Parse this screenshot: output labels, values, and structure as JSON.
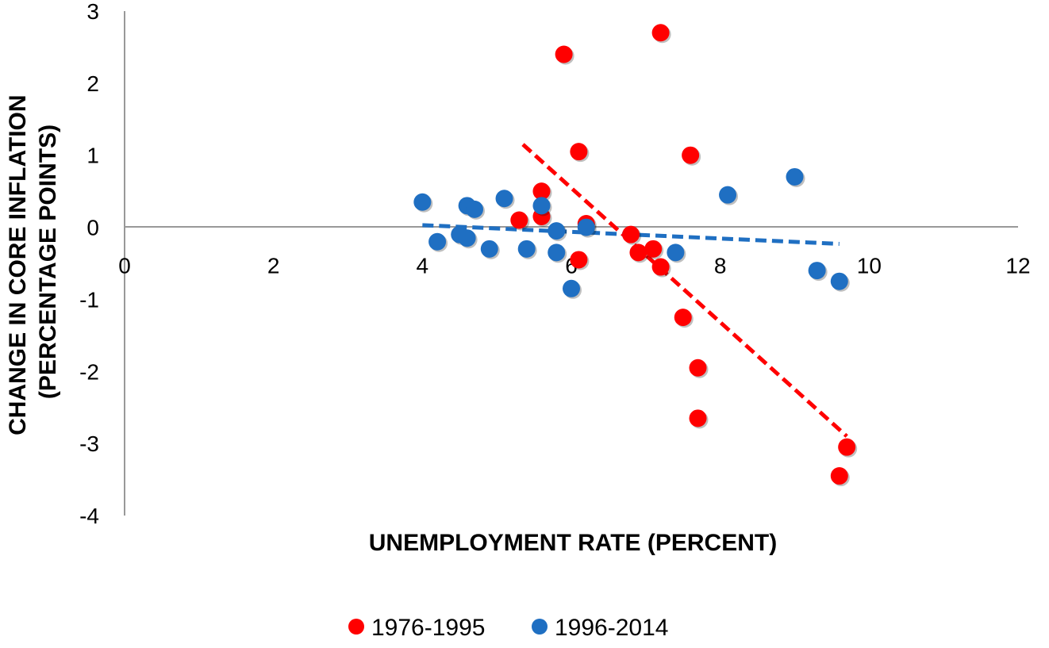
{
  "chart_data": {
    "type": "scatter",
    "title": "",
    "xlabel": "UNEMPLOYMENT RATE (PERCENT)",
    "ylabel_lines": [
      "CHANGE IN CORE INFLATION",
      "(PERCENTAGE POINTS)"
    ],
    "xlim": [
      0,
      12
    ],
    "ylim": [
      -4,
      3
    ],
    "xticks": [
      0,
      2,
      4,
      6,
      8,
      10,
      12
    ],
    "yticks": [
      3,
      2,
      1,
      0,
      -1,
      -2,
      -3,
      -4
    ],
    "grid": false,
    "legend_position": "bottom",
    "series": [
      {
        "name": "1976-1995",
        "color": "#ff0000",
        "points": [
          [
            5.9,
            2.4
          ],
          [
            7.2,
            2.7
          ],
          [
            6.1,
            1.05
          ],
          [
            7.6,
            1.0
          ],
          [
            5.6,
            0.5
          ],
          [
            5.3,
            0.1
          ],
          [
            5.6,
            0.15
          ],
          [
            6.2,
            0.05
          ],
          [
            6.8,
            -0.1
          ],
          [
            6.9,
            -0.35
          ],
          [
            7.1,
            -0.3
          ],
          [
            7.2,
            -0.55
          ],
          [
            6.1,
            -0.45
          ],
          [
            7.5,
            -1.25
          ],
          [
            7.7,
            -1.95
          ],
          [
            7.7,
            -2.65
          ],
          [
            9.7,
            -3.05
          ],
          [
            9.6,
            -3.45
          ]
        ],
        "trendline": {
          "x": [
            5.35,
            9.7
          ],
          "y": [
            1.15,
            -2.9
          ]
        }
      },
      {
        "name": "1996-2014",
        "color": "#1f6fc2",
        "points": [
          [
            4.0,
            0.35
          ],
          [
            4.2,
            -0.2
          ],
          [
            4.5,
            -0.1
          ],
          [
            4.6,
            -0.15
          ],
          [
            4.6,
            0.3
          ],
          [
            4.7,
            0.25
          ],
          [
            4.9,
            -0.3
          ],
          [
            5.1,
            0.4
          ],
          [
            5.4,
            -0.3
          ],
          [
            5.6,
            0.3
          ],
          [
            5.8,
            -0.05
          ],
          [
            5.8,
            -0.35
          ],
          [
            6.0,
            -0.85
          ],
          [
            6.2,
            0.0
          ],
          [
            7.4,
            -0.35
          ],
          [
            8.1,
            0.45
          ],
          [
            9.0,
            0.7
          ],
          [
            9.3,
            -0.6
          ],
          [
            9.6,
            -0.75
          ]
        ],
        "trendline": {
          "x": [
            4.0,
            9.6
          ],
          "y": [
            0.03,
            -0.23
          ]
        }
      }
    ]
  }
}
